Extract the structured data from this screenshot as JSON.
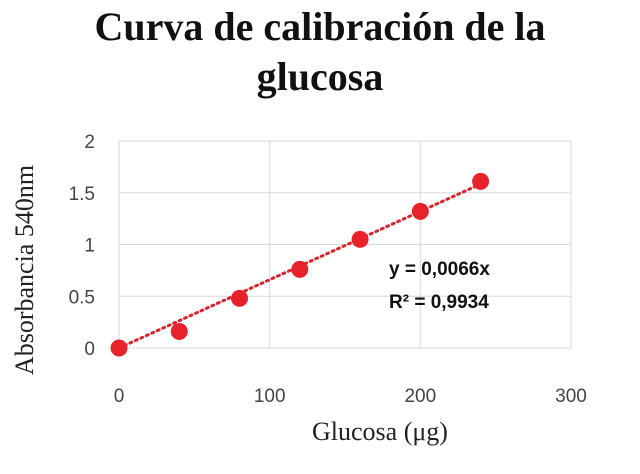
{
  "chart_data": {
    "type": "scatter",
    "title_line1": "Curva de calibración de la",
    "title_line2": "glucosa",
    "xlabel": "Glucosa (μg)",
    "ylabel": "Absorbancia 540nm",
    "xlim": [
      0,
      300
    ],
    "ylim": [
      0,
      2
    ],
    "xticks": [
      "0",
      "100",
      "200",
      "300"
    ],
    "yticks": [
      "0",
      "0.5",
      "1",
      "1.5",
      "2"
    ],
    "grid": true,
    "points": [
      {
        "x": 0,
        "y": 0
      },
      {
        "x": 40,
        "y": 0.16
      },
      {
        "x": 80,
        "y": 0.48
      },
      {
        "x": 120,
        "y": 0.76
      },
      {
        "x": 160,
        "y": 1.05
      },
      {
        "x": 200,
        "y": 1.32
      },
      {
        "x": 240,
        "y": 1.61
      }
    ],
    "trendline": {
      "slope": 0.0066,
      "equation": "y = 0,0066x",
      "r_squared": "R² = 0,9934"
    },
    "marker_color": "#e8222a",
    "trendline_color": "#d7262b"
  }
}
